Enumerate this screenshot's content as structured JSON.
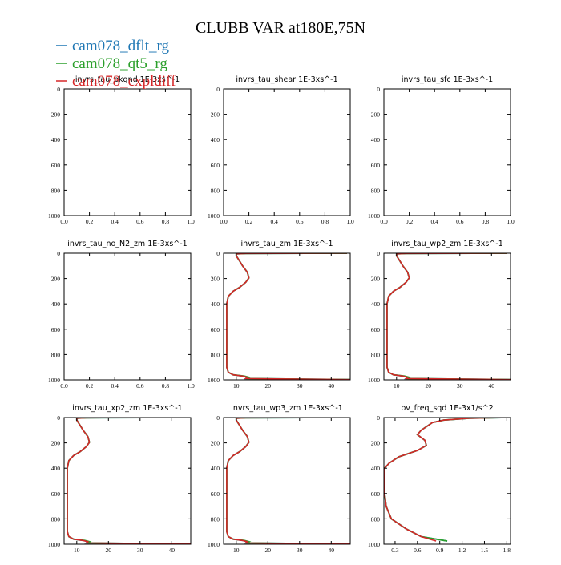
{
  "title": "CLUBB VAR at180E,75N",
  "legend": [
    {
      "label": "cam078_dflt_rg",
      "color": "#1f77b4"
    },
    {
      "label": "cam078_qt5_rg",
      "color": "#2ca02c"
    },
    {
      "label": "cam078_cxpldiff",
      "color": "#d62728"
    }
  ],
  "chart_data": [
    {
      "type": "line",
      "title": "invrs_tau_bkgnd   1E-3xs^-1",
      "xlim": [
        0,
        1
      ],
      "ylim": [
        1000,
        0
      ],
      "xticks": [
        "0.0",
        "0.2",
        "0.4",
        "0.6",
        "0.8",
        "1.0"
      ],
      "yticks": [
        "0",
        "200",
        "400",
        "600",
        "800",
        "1000"
      ],
      "series": []
    },
    {
      "type": "line",
      "title": "invrs_tau_shear   1E-3xs^-1",
      "xlim": [
        0,
        1
      ],
      "ylim": [
        1000,
        0
      ],
      "xticks": [
        "0.0",
        "0.2",
        "0.4",
        "0.6",
        "0.8",
        "1.0"
      ],
      "yticks": [
        "0",
        "200",
        "400",
        "600",
        "800",
        "1000"
      ],
      "series": []
    },
    {
      "type": "line",
      "title": "invrs_tau_sfc   1E-3xs^-1",
      "xlim": [
        0,
        1
      ],
      "ylim": [
        1000,
        0
      ],
      "xticks": [
        "0.0",
        "0.2",
        "0.4",
        "0.6",
        "0.8",
        "1.0"
      ],
      "yticks": [
        "0",
        "200",
        "400",
        "600",
        "800",
        "1000"
      ],
      "series": []
    },
    {
      "type": "line",
      "title": "invrs_tau_no_N2_zm   1E-3xs^-1",
      "xlim": [
        0,
        1
      ],
      "ylim": [
        1000,
        0
      ],
      "xticks": [
        "0.0",
        "0.2",
        "0.4",
        "0.6",
        "0.8",
        "1.0"
      ],
      "yticks": [
        "0",
        "200",
        "400",
        "600",
        "800",
        "1000"
      ],
      "series": []
    },
    {
      "type": "line",
      "title": "invrs_tau_zm   1E-3xs^-1",
      "xlim": [
        6,
        46
      ],
      "ylim": [
        1000,
        0
      ],
      "xticks": [
        "10",
        "20",
        "30",
        "40"
      ],
      "yticks": [
        "0",
        "200",
        "400",
        "600",
        "800",
        "1000"
      ],
      "series": [
        {
          "color": "#1f77b4",
          "x": [
            45,
            13,
            10,
            10,
            11,
            12,
            13.5,
            14,
            13,
            11,
            9,
            7.5,
            7,
            7,
            7,
            7,
            7,
            7,
            7.5,
            9,
            12,
            13.5,
            13,
            46
          ],
          "y": [
            0,
            2,
            5,
            20,
            60,
            100,
            150,
            195,
            230,
            270,
            300,
            340,
            400,
            500,
            600,
            700,
            800,
            900,
            940,
            960,
            970,
            980,
            990,
            998
          ]
        },
        {
          "color": "#2ca02c",
          "x": [
            45,
            13,
            10,
            10,
            11,
            12,
            13.5,
            14,
            13,
            11,
            9,
            7.5,
            7,
            7,
            7,
            7,
            7,
            7,
            7.5,
            9,
            12.5,
            14,
            13,
            46
          ],
          "y": [
            0,
            2,
            5,
            20,
            60,
            100,
            150,
            195,
            230,
            270,
            300,
            340,
            400,
            500,
            600,
            700,
            800,
            900,
            940,
            960,
            970,
            980,
            990,
            998
          ]
        },
        {
          "color": "#d62728",
          "x": [
            45,
            13,
            10,
            10,
            11,
            12,
            13.5,
            14,
            13,
            11,
            9,
            7.5,
            7,
            7,
            7,
            7,
            7,
            7,
            7.5,
            9,
            12,
            13.5,
            13,
            46
          ],
          "y": [
            0,
            2,
            5,
            20,
            60,
            100,
            150,
            195,
            230,
            270,
            300,
            340,
            400,
            500,
            600,
            700,
            800,
            900,
            940,
            960,
            970,
            980,
            990,
            998
          ]
        }
      ]
    },
    {
      "type": "line",
      "title": "invrs_tau_wp2_zm   1E-3xs^-1",
      "xlim": [
        6,
        46
      ],
      "ylim": [
        1000,
        0
      ],
      "xticks": [
        "10",
        "20",
        "30",
        "40"
      ],
      "yticks": [
        "0",
        "200",
        "400",
        "600",
        "800",
        "1000"
      ],
      "series": [
        {
          "color": "#1f77b4",
          "x": [
            45,
            13,
            10,
            10,
            11,
            12,
            13.5,
            14,
            13,
            11,
            9,
            7.5,
            7,
            7,
            7,
            7,
            7,
            7,
            7.5,
            9,
            12,
            13.5,
            13,
            46
          ],
          "y": [
            0,
            2,
            5,
            20,
            60,
            100,
            150,
            195,
            230,
            270,
            300,
            340,
            400,
            500,
            600,
            700,
            800,
            900,
            940,
            960,
            970,
            980,
            990,
            998
          ]
        },
        {
          "color": "#2ca02c",
          "x": [
            45,
            13,
            10,
            10,
            11,
            12,
            13.5,
            14,
            13,
            11,
            9,
            7.5,
            7,
            7,
            7,
            7,
            7,
            7,
            7.5,
            9,
            12.5,
            14,
            13,
            46
          ],
          "y": [
            0,
            2,
            5,
            20,
            60,
            100,
            150,
            195,
            230,
            270,
            300,
            340,
            400,
            500,
            600,
            700,
            800,
            900,
            940,
            960,
            970,
            980,
            990,
            998
          ]
        },
        {
          "color": "#d62728",
          "x": [
            45,
            13,
            10,
            10,
            11,
            12,
            13.5,
            14,
            13,
            11,
            9,
            7.5,
            7,
            7,
            7,
            7,
            7,
            7,
            7.5,
            9,
            12,
            13.5,
            13,
            46
          ],
          "y": [
            0,
            2,
            5,
            20,
            60,
            100,
            150,
            195,
            230,
            270,
            300,
            340,
            400,
            500,
            600,
            700,
            800,
            900,
            940,
            960,
            970,
            980,
            990,
            998
          ]
        }
      ]
    },
    {
      "type": "line",
      "title": "invrs_tau_xp2_zm   1E-3xs^-1",
      "xlim": [
        6,
        46
      ],
      "ylim": [
        1000,
        0
      ],
      "xticks": [
        "10",
        "20",
        "30",
        "40"
      ],
      "yticks": [
        "0",
        "200",
        "400",
        "600",
        "800",
        "1000"
      ],
      "series": [
        {
          "color": "#1f77b4",
          "x": [
            45,
            13,
            10,
            10,
            11,
            12,
            13.5,
            14,
            13,
            11,
            9,
            7.5,
            7,
            7,
            7,
            7,
            7,
            7,
            7.5,
            9,
            12,
            13.5,
            13,
            46
          ],
          "y": [
            0,
            2,
            5,
            20,
            60,
            100,
            150,
            195,
            230,
            270,
            300,
            340,
            400,
            500,
            600,
            700,
            800,
            900,
            940,
            960,
            970,
            980,
            990,
            998
          ]
        },
        {
          "color": "#2ca02c",
          "x": [
            45,
            13,
            10,
            10,
            11,
            12,
            13.5,
            14,
            13,
            11,
            9,
            7.5,
            7,
            7,
            7,
            7,
            7,
            7,
            7.5,
            9,
            12.5,
            14,
            13,
            46
          ],
          "y": [
            0,
            2,
            5,
            20,
            60,
            100,
            150,
            195,
            230,
            270,
            300,
            340,
            400,
            500,
            600,
            700,
            800,
            900,
            940,
            960,
            970,
            980,
            990,
            998
          ]
        },
        {
          "color": "#d62728",
          "x": [
            45,
            13,
            10,
            10,
            11,
            12,
            13.5,
            14,
            13,
            11,
            9,
            7.5,
            7,
            7,
            7,
            7,
            7,
            7,
            7.5,
            9,
            12,
            13.5,
            13,
            46
          ],
          "y": [
            0,
            2,
            5,
            20,
            60,
            100,
            150,
            195,
            230,
            270,
            300,
            340,
            400,
            500,
            600,
            700,
            800,
            900,
            940,
            960,
            970,
            980,
            990,
            998
          ]
        }
      ]
    },
    {
      "type": "line",
      "title": "invrs_tau_wp3_zm   1E-3xs^-1",
      "xlim": [
        6,
        46
      ],
      "ylim": [
        1000,
        0
      ],
      "xticks": [
        "10",
        "20",
        "30",
        "40"
      ],
      "yticks": [
        "0",
        "200",
        "400",
        "600",
        "800",
        "1000"
      ],
      "series": [
        {
          "color": "#1f77b4",
          "x": [
            45,
            13,
            10,
            10,
            11,
            12,
            13.5,
            14,
            13,
            11,
            9,
            7.5,
            7,
            7,
            7,
            7,
            7,
            7,
            7.5,
            9,
            12,
            13.5,
            13,
            46
          ],
          "y": [
            0,
            2,
            5,
            20,
            60,
            100,
            150,
            195,
            230,
            270,
            300,
            340,
            400,
            500,
            600,
            700,
            800,
            900,
            940,
            960,
            970,
            980,
            990,
            998
          ]
        },
        {
          "color": "#2ca02c",
          "x": [
            45,
            13,
            10,
            10,
            11,
            12,
            13.5,
            14,
            13,
            11,
            9,
            7.5,
            7,
            7,
            7,
            7,
            7,
            7,
            7.5,
            9,
            12.5,
            14,
            13,
            46
          ],
          "y": [
            0,
            2,
            5,
            20,
            60,
            100,
            150,
            195,
            230,
            270,
            300,
            340,
            400,
            500,
            600,
            700,
            800,
            900,
            940,
            960,
            970,
            980,
            990,
            998
          ]
        },
        {
          "color": "#d62728",
          "x": [
            45,
            13,
            10,
            10,
            11,
            12,
            13.5,
            14,
            13,
            11,
            9,
            7.5,
            7,
            7,
            7,
            7,
            7,
            7,
            7.5,
            9,
            12,
            13.5,
            13,
            46
          ],
          "y": [
            0,
            2,
            5,
            20,
            60,
            100,
            150,
            195,
            230,
            270,
            300,
            340,
            400,
            500,
            600,
            700,
            800,
            900,
            940,
            960,
            970,
            980,
            990,
            998
          ]
        }
      ]
    },
    {
      "type": "line",
      "title": "bv_freq_sqd   1E-3x1/s^2",
      "xlim": [
        0.15,
        1.85
      ],
      "ylim": [
        1000,
        0
      ],
      "xticks": [
        "0.3",
        "0.6",
        "0.9",
        "1.2",
        "1.5",
        "1.8"
      ],
      "yticks": [
        "0",
        "200",
        "400",
        "600",
        "800",
        "1000"
      ],
      "series": [
        {
          "color": "#1f77b4",
          "x": [
            1.8,
            1.3,
            0.95,
            0.8,
            0.75,
            0.65,
            0.6,
            0.7,
            0.72,
            0.6,
            0.35,
            0.22,
            0.16,
            0.16,
            0.16,
            0.18,
            0.25,
            0.45,
            0.65,
            1.0
          ],
          "y": [
            0,
            5,
            20,
            40,
            60,
            100,
            135,
            180,
            220,
            260,
            310,
            360,
            400,
            500,
            600,
            700,
            800,
            880,
            940,
            975
          ]
        },
        {
          "color": "#2ca02c",
          "x": [
            1.8,
            1.3,
            0.95,
            0.8,
            0.75,
            0.65,
            0.6,
            0.7,
            0.72,
            0.6,
            0.35,
            0.22,
            0.16,
            0.16,
            0.16,
            0.18,
            0.25,
            0.45,
            0.65,
            1.0
          ],
          "y": [
            0,
            5,
            20,
            40,
            60,
            100,
            135,
            180,
            220,
            260,
            310,
            360,
            400,
            500,
            600,
            700,
            800,
            880,
            940,
            975
          ]
        },
        {
          "color": "#d62728",
          "x": [
            1.8,
            1.3,
            0.95,
            0.8,
            0.75,
            0.65,
            0.6,
            0.7,
            0.72,
            0.6,
            0.35,
            0.22,
            0.16,
            0.16,
            0.16,
            0.18,
            0.25,
            0.45,
            0.65,
            0.85
          ],
          "y": [
            0,
            5,
            20,
            40,
            60,
            100,
            135,
            180,
            220,
            260,
            310,
            360,
            400,
            500,
            600,
            700,
            800,
            880,
            940,
            975
          ]
        }
      ]
    }
  ]
}
